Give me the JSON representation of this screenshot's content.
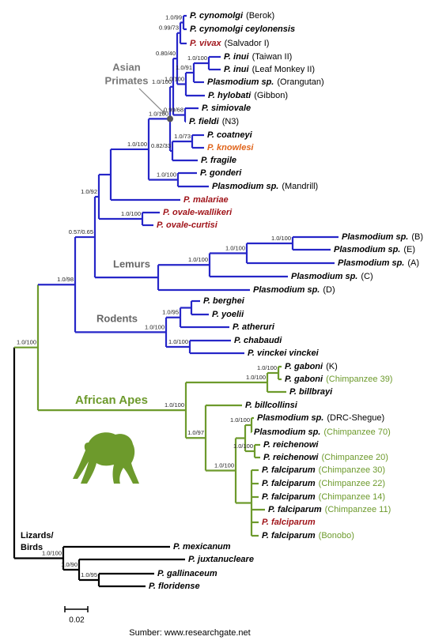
{
  "taxa": [
    {
      "name": "P. cynomolgi",
      "strain": "(Berok)"
    },
    {
      "name": "P. cynomolgi  ceylonensis"
    },
    {
      "name": "P. vivax",
      "strain": "(Salvador I)"
    },
    {
      "name": "P. inui",
      "strain": "(Taiwan II)"
    },
    {
      "name": "P. inui",
      "strain": "(Leaf Monkey II)"
    },
    {
      "name": "Plasmodium sp.",
      "strain": "(Orangutan)"
    },
    {
      "name": "P. hylobati",
      "strain": "(Gibbon)"
    },
    {
      "name": "P. simiovale"
    },
    {
      "name": "P. fieldi",
      "strain": "(N3)"
    },
    {
      "name": "P. coatneyi"
    },
    {
      "name": "P. knowlesi"
    },
    {
      "name": "P. fragile"
    },
    {
      "name": "P. gonderi"
    },
    {
      "name": "Plasmodium sp.",
      "strain": "(Mandrill)"
    },
    {
      "name": "P. malariae"
    },
    {
      "name": "P. ovale-wallikeri"
    },
    {
      "name": "P. ovale-curtisi"
    },
    {
      "name": "Plasmodium sp.",
      "strain": "(B)"
    },
    {
      "name": "Plasmodium sp.",
      "strain": "(E)"
    },
    {
      "name": "Plasmodium sp.",
      "strain": "(A)"
    },
    {
      "name": "Plasmodium sp.",
      "strain": "(C)"
    },
    {
      "name": "Plasmodium sp.",
      "strain": "(D)"
    },
    {
      "name": "P. berghei"
    },
    {
      "name": "P. yoelii"
    },
    {
      "name": "P. atheruri"
    },
    {
      "name": "P. chabaudi"
    },
    {
      "name": "P. vinckei vinckei"
    },
    {
      "name": "P. gaboni",
      "strain": "(K)"
    },
    {
      "name": "P. gaboni",
      "strain": "(Chimpanzee 39)"
    },
    {
      "name": "P. billbrayi"
    },
    {
      "name": "P. billcollinsi"
    },
    {
      "name": "Plasmodium sp.",
      "strain": "(DRC-Shegue)"
    },
    {
      "name": "Plasmodium sp.",
      "strain": "(Chimpanzee 70)"
    },
    {
      "name": "P. reichenowi"
    },
    {
      "name": "P. reichenowi",
      "strain": "(Chimpanzee 20)"
    },
    {
      "name": "P. falciparum",
      "strain": "(Chimpanzee 30)"
    },
    {
      "name": "P. falciparum",
      "strain": "(Chimpanzee 22)"
    },
    {
      "name": "P. falciparum",
      "strain": "(Chimpanzee 14)"
    },
    {
      "name": "P. falciparum",
      "strain": "(Chimpanzee 11)"
    },
    {
      "name": "P. falciparum"
    },
    {
      "name": "P. falciparum",
      "strain": "(Bonobo)"
    },
    {
      "name": "P. mexicanum"
    },
    {
      "name": "P. juxtanucleare"
    },
    {
      "name": "P. gallinaceum"
    },
    {
      "name": "P. floridense"
    }
  ],
  "supports": [
    "1.0/100",
    "1.0/98",
    "0.57/0.65",
    "1.0/92",
    "1.0/100",
    "1.0/100",
    "1.0/100",
    "0.80/40",
    "0.99/73",
    "1.0/99",
    "1.0/100",
    "1.0/91",
    "1.0/100",
    "0.99/68",
    "0.82/33",
    "1.0/73",
    "1.0/100",
    "1.0/100",
    "1.0/100",
    "1.0/100",
    "1.0/100",
    "1.0/100",
    "1.0/95",
    "1.0/100",
    "1.0/100",
    "1.0/100",
    "1.0/100",
    "1.0/97",
    "1.0/100",
    "1.0/100",
    "1.0/100",
    "1.0/100",
    "1.0/90",
    "1.0/95"
  ],
  "clade_labels": {
    "asian_primates": [
      "Asian",
      "Primates"
    ],
    "lemurs": "Lemurs",
    "rodents": "Rodents",
    "african_apes": "African Apes",
    "lizards_birds": [
      "Lizards/",
      "Birds"
    ]
  },
  "scale_bar": "0.02",
  "source": "Sumber: www.researchgate.net"
}
